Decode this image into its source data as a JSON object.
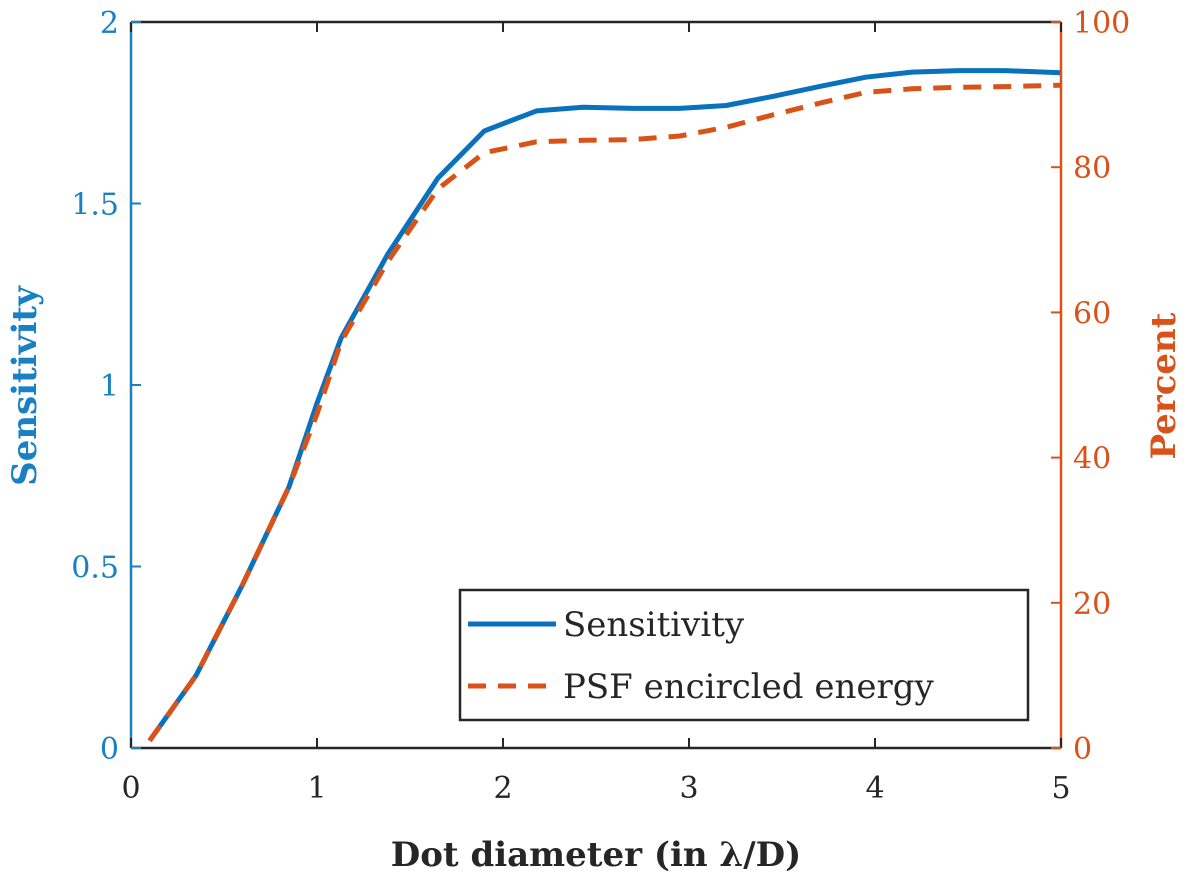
{
  "chart_data": {
    "type": "line",
    "title": "",
    "xlabel": "Dot diameter (in λ/D)",
    "ylabel_left": "Sensitivity",
    "ylabel_right": "Percent",
    "xlim": [
      0,
      5
    ],
    "ylim_left": [
      0,
      2
    ],
    "ylim_right": [
      0,
      100
    ],
    "x_ticks": [
      "0",
      "1",
      "2",
      "3",
      "4",
      "5"
    ],
    "y_ticks_left": [
      "0",
      "0.5",
      "1",
      "1.5",
      "2"
    ],
    "y_ticks_right": [
      "0",
      "20",
      "40",
      "60",
      "80",
      "100"
    ],
    "grid": false,
    "legend_position": "bottom-right",
    "colors": {
      "left_axis": "#1a80c4",
      "right_axis": "#d95319",
      "sensitivity": "#0a72bd",
      "psf": "#d95319",
      "frame": "#262626"
    },
    "series": [
      {
        "name": "Sensitivity",
        "axis": "left",
        "style": "solid",
        "x": [
          0.1,
          0.35,
          0.6,
          0.85,
          1.0,
          1.13,
          1.38,
          1.65,
          1.9,
          2.18,
          2.43,
          2.7,
          2.95,
          3.2,
          3.45,
          3.7,
          3.95,
          4.2,
          4.45,
          4.7,
          5.0
        ],
        "y": [
          0.02,
          0.2,
          0.45,
          0.72,
          0.95,
          1.13,
          1.36,
          1.57,
          1.7,
          1.755,
          1.765,
          1.762,
          1.762,
          1.77,
          1.795,
          1.822,
          1.848,
          1.862,
          1.866,
          1.866,
          1.86
        ]
      },
      {
        "name": "PSF encircled energy",
        "axis": "right",
        "style": "dashed",
        "x": [
          0.1,
          0.35,
          0.6,
          0.85,
          1.0,
          1.13,
          1.38,
          1.65,
          1.9,
          2.18,
          2.43,
          2.7,
          2.95,
          3.2,
          3.45,
          3.7,
          3.95,
          4.2,
          4.45,
          4.7,
          5.0
        ],
        "y": [
          1,
          10,
          22.5,
          36,
          46,
          56,
          67,
          77,
          82,
          83.5,
          83.7,
          83.8,
          84.3,
          85.5,
          87.2,
          88.8,
          90.3,
          90.8,
          91.0,
          91.1,
          91.3
        ]
      }
    ]
  }
}
